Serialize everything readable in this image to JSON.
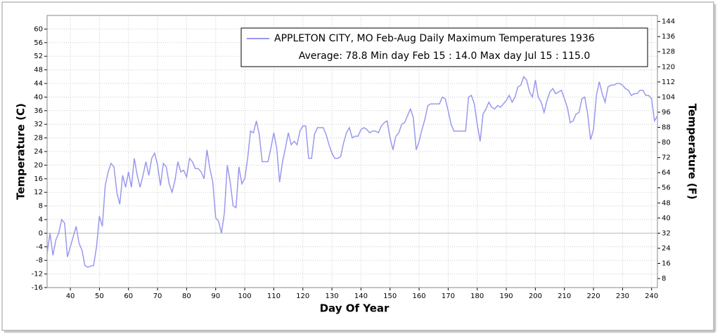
{
  "chart_data": {
    "type": "line",
    "legend_text": "Average: 78.8  Min day Feb 15 : 14.0  Max day Jul 15 : 115.0",
    "xlabel": "Day Of Year",
    "ylabel": "Temperature (C)",
    "y2label": "Temperature (F)",
    "x": [
      32,
      33,
      34,
      35,
      36,
      37,
      38,
      39,
      40,
      41,
      42,
      43,
      44,
      45,
      46,
      47,
      48,
      49,
      50,
      51,
      52,
      53,
      54,
      55,
      56,
      57,
      58,
      59,
      60,
      61,
      62,
      63,
      64,
      65,
      66,
      67,
      68,
      69,
      70,
      71,
      72,
      73,
      74,
      75,
      76,
      77,
      78,
      79,
      80,
      81,
      82,
      83,
      84,
      85,
      86,
      87,
      88,
      89,
      90,
      91,
      92,
      93,
      94,
      95,
      96,
      97,
      98,
      99,
      100,
      101,
      102,
      103,
      104,
      105,
      106,
      107,
      108,
      109,
      110,
      111,
      112,
      113,
      114,
      115,
      116,
      117,
      118,
      119,
      120,
      121,
      122,
      123,
      124,
      125,
      126,
      127,
      128,
      129,
      130,
      131,
      132,
      133,
      134,
      135,
      136,
      137,
      138,
      139,
      140,
      141,
      142,
      143,
      144,
      145,
      146,
      147,
      148,
      149,
      150,
      151,
      152,
      153,
      154,
      155,
      156,
      157,
      158,
      159,
      160,
      161,
      162,
      163,
      164,
      165,
      166,
      167,
      168,
      169,
      170,
      171,
      172,
      173,
      174,
      175,
      176,
      177,
      178,
      179,
      180,
      181,
      182,
      183,
      184,
      185,
      186,
      187,
      188,
      189,
      190,
      191,
      192,
      193,
      194,
      195,
      196,
      197,
      198,
      199,
      200,
      201,
      202,
      203,
      204,
      205,
      206,
      207,
      208,
      209,
      210,
      211,
      212,
      213,
      214,
      215,
      216,
      217,
      218,
      219,
      220,
      221,
      222,
      223,
      224,
      225,
      226,
      227,
      228,
      229,
      230,
      231,
      232,
      233,
      234,
      235,
      236,
      237,
      238,
      239,
      240,
      241,
      242
    ],
    "series": [
      {
        "name": "APPLETON CITY, MO  Feb-Aug  Daily Maximum Temperatures 1936",
        "color": "#9999ee",
        "values": [
          -6,
          0,
          -6.5,
          -2,
          0,
          4,
          3,
          -7,
          -4,
          -1,
          2,
          -3,
          -5,
          -9.5,
          -10,
          -9.7,
          -9.5,
          -4,
          5,
          2,
          14,
          18,
          20.5,
          19.5,
          12,
          8.5,
          17,
          13.5,
          18,
          13.5,
          22,
          17,
          13.5,
          17,
          21,
          17,
          22,
          23.5,
          20,
          14,
          20.5,
          19.5,
          14.5,
          12,
          15.5,
          21,
          18,
          18.5,
          16.5,
          22,
          21,
          19,
          19,
          18,
          16,
          24.5,
          19,
          15,
          4.5,
          3.5,
          0,
          6,
          20,
          15,
          8,
          7.5,
          19.5,
          14.5,
          16,
          22,
          30,
          29.5,
          33,
          29,
          21,
          21,
          21,
          25,
          29.5,
          25,
          15,
          21,
          25,
          29.5,
          26,
          27,
          26,
          30,
          31.5,
          31.5,
          22,
          22,
          29,
          31,
          31,
          31,
          29,
          26,
          23.5,
          22,
          22,
          22.5,
          26.5,
          29.5,
          31,
          28,
          28.5,
          28.5,
          30.5,
          31,
          30.5,
          29.5,
          30,
          30,
          29.5,
          31.5,
          32.5,
          33,
          28,
          24.5,
          28.5,
          29.5,
          32,
          32.5,
          34.5,
          36.5,
          34,
          24.5,
          27,
          30.5,
          33.5,
          37.5,
          38,
          38,
          38,
          38,
          40,
          39.5,
          36,
          32,
          30,
          30,
          30,
          30,
          30,
          40,
          40.5,
          38,
          32,
          27,
          35,
          36.5,
          38.5,
          37,
          36.5,
          37.5,
          37,
          38,
          39,
          40.5,
          38.5,
          40,
          43,
          43.5,
          46,
          45,
          41.5,
          40,
          45,
          40,
          38.5,
          35.5,
          39,
          41.5,
          42.5,
          41,
          41.5,
          42,
          39.5,
          37,
          32.5,
          33,
          35,
          35.5,
          39.5,
          40,
          35,
          27.5,
          30.5,
          40.5,
          44.5,
          41,
          38.5,
          43,
          43.5,
          43.5,
          44,
          44,
          43.5,
          42.5,
          42,
          40.5,
          41,
          41,
          42,
          42,
          40.5,
          40.5,
          39.5,
          33,
          34.5
        ]
      }
    ],
    "xlim": [
      32,
      242
    ],
    "xticks": [
      40,
      50,
      60,
      70,
      80,
      90,
      100,
      110,
      120,
      130,
      140,
      150,
      160,
      170,
      180,
      190,
      200,
      210,
      220,
      230,
      240
    ],
    "ylim": [
      -16,
      64
    ],
    "yticks": [
      -16,
      -12,
      -8,
      -4,
      0,
      4,
      8,
      12,
      16,
      20,
      24,
      28,
      32,
      36,
      40,
      44,
      48,
      52,
      56,
      60
    ],
    "y2lim": [
      3.2,
      147.2
    ],
    "y2ticks": [
      8,
      16,
      24,
      32,
      40,
      48,
      56,
      64,
      72,
      80,
      88,
      96,
      104,
      112,
      120,
      128,
      136,
      144
    ],
    "grid": true,
    "legend": "upper right"
  }
}
